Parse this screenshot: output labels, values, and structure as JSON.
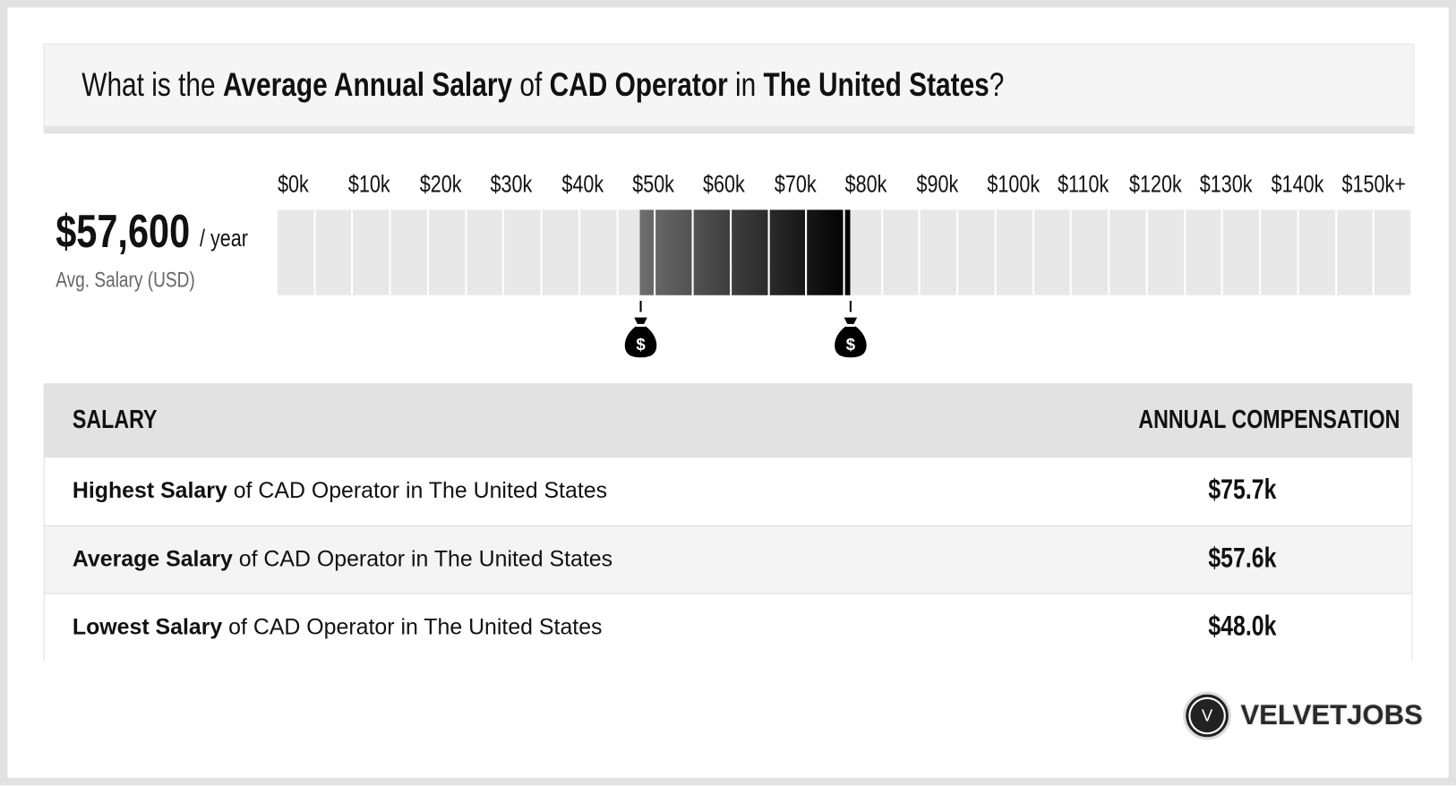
{
  "title": {
    "p1": "What is the ",
    "b1": "Average Annual Salary",
    "p2": " of ",
    "b2": "CAD Operator",
    "p3": " in ",
    "b3": "The United States",
    "p4": "?"
  },
  "summary": {
    "value": "$57,600",
    "per": "/ year",
    "label": "Avg. Salary (USD)"
  },
  "scale": {
    "labels": [
      "$0k",
      "$10k",
      "$20k",
      "$30k",
      "$40k",
      "$50k",
      "$60k",
      "$70k",
      "$80k",
      "$90k",
      "$100k",
      "$110k",
      "$120k",
      "$130k",
      "$140k",
      "$150k+"
    ],
    "min_k": 0,
    "max_k": 150,
    "range_low_k": 48.0,
    "range_high_k": 75.7,
    "markers": [
      "money-bag-icon",
      "money-bag-icon"
    ]
  },
  "table": {
    "headers": [
      "SALARY",
      "ANNUAL COMPENSATION"
    ],
    "rows": [
      {
        "bold": "Highest Salary",
        "rest": " of CAD Operator in The United States",
        "value": "$75.7k"
      },
      {
        "bold": "Average Salary",
        "rest": " of CAD Operator in The United States",
        "value": "$57.6k"
      },
      {
        "bold": "Lowest Salary",
        "rest": " of CAD Operator in The United States",
        "value": "$48.0k"
      }
    ]
  },
  "brand": {
    "name": "VELVETJOBS",
    "mark": "V"
  }
}
